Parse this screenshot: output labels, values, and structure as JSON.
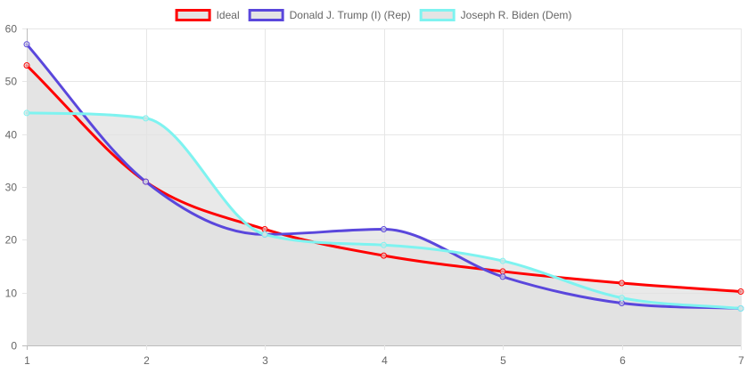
{
  "chart_data": {
    "type": "line",
    "x": [
      1,
      2,
      3,
      4,
      5,
      6,
      7
    ],
    "xlim": [
      1,
      7
    ],
    "ylim": [
      0,
      60
    ],
    "ystep": 10,
    "grid": true,
    "legend_position": "top-center",
    "title": "",
    "xlabel": "",
    "ylabel": "",
    "series": [
      {
        "name": "Ideal",
        "values": [
          53,
          31,
          22,
          17,
          14,
          11.8,
          10.2
        ],
        "color": "#ff0000",
        "fill": "rgba(225,225,225,0.75)"
      },
      {
        "name": "Donald J. Trump (I) (Rep)",
        "values": [
          57,
          31,
          21,
          22,
          13,
          8,
          7
        ],
        "color": "#5a47dc",
        "fill": "rgba(225,225,225,0.75)"
      },
      {
        "name": "Joseph R. Biden (Dem)",
        "values": [
          44,
          43,
          21,
          19,
          16,
          9,
          7
        ],
        "color": "#7ef3f0",
        "fill": "rgba(225,225,225,0.75)"
      }
    ]
  }
}
